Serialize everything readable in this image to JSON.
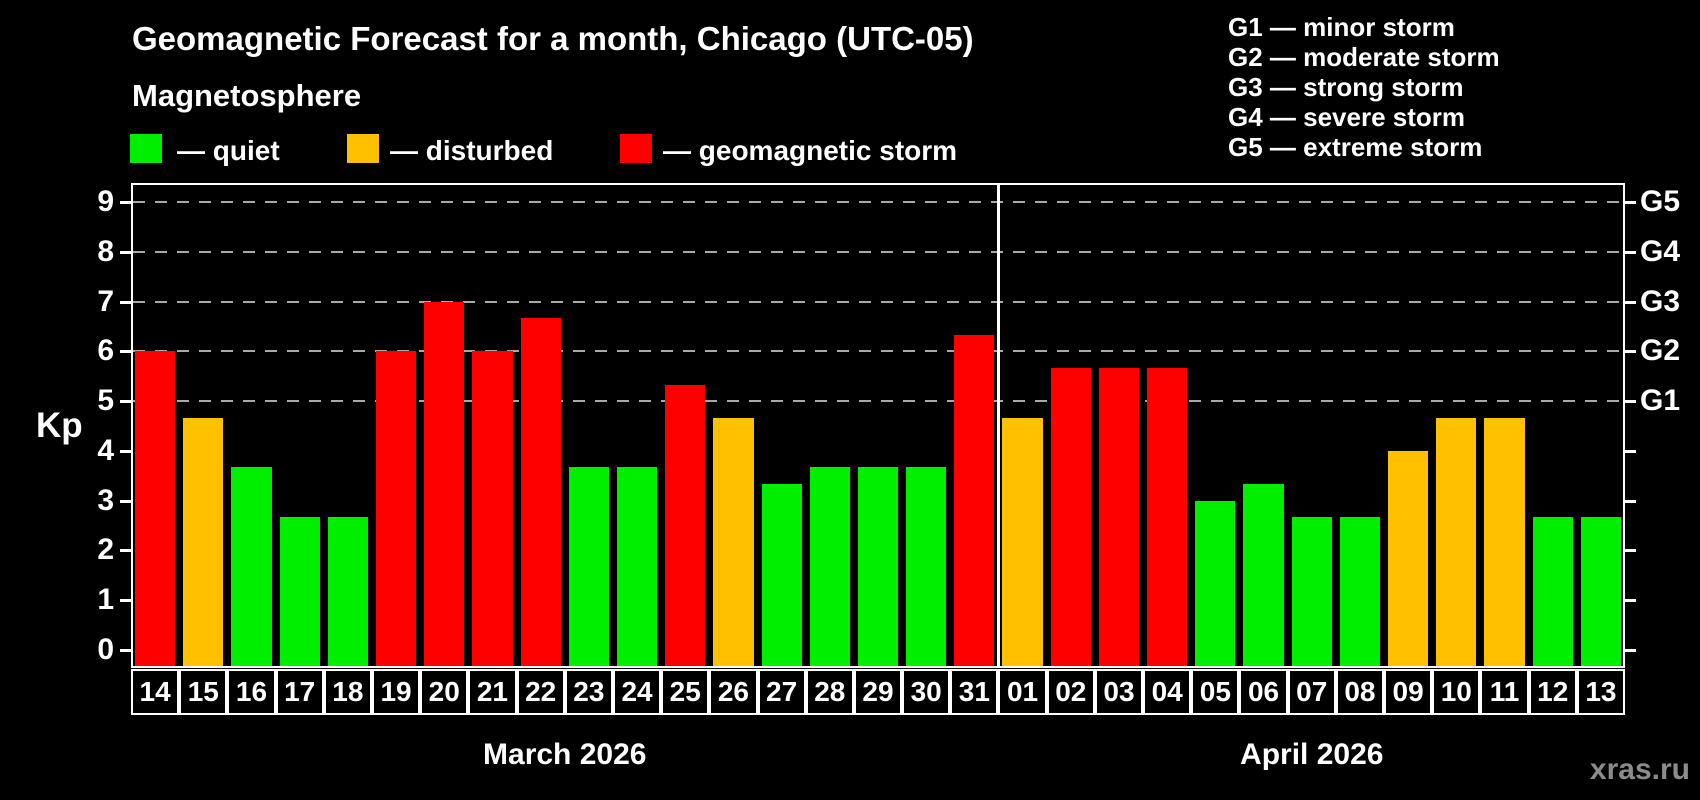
{
  "header": {
    "title": "Geomagnetic Forecast for a month, Chicago (UTC-05)",
    "subtitle": "Magnetosphere"
  },
  "legend": {
    "quiet_label": "— quiet",
    "disturbed_label": "— disturbed",
    "storm_label": "— geomagnetic storm"
  },
  "g_legend": [
    {
      "label": "G1 — minor storm"
    },
    {
      "label": "G2 — moderate storm"
    },
    {
      "label": "G3 — strong storm"
    },
    {
      "label": "G4 — severe storm"
    },
    {
      "label": "G5 — extreme storm"
    }
  ],
  "watermark": "xras.ru",
  "chart_data": {
    "type": "bar",
    "ylabel": "Kp",
    "ylim": [
      0,
      9
    ],
    "y_ticks": [
      0,
      1,
      2,
      3,
      4,
      5,
      6,
      7,
      8,
      9
    ],
    "gridlines_at_kp": [
      5,
      6,
      7,
      8,
      9
    ],
    "right_axis": [
      {
        "kp": 5,
        "label": "G1"
      },
      {
        "kp": 6,
        "label": "G2"
      },
      {
        "kp": 7,
        "label": "G3"
      },
      {
        "kp": 8,
        "label": "G4"
      },
      {
        "kp": 9,
        "label": "G5"
      }
    ],
    "status_colors": {
      "quiet": "#00ee00",
      "disturbed": "#ffc000",
      "storm": "#ff0000"
    },
    "grid_color": "#a8a8a8",
    "months": [
      {
        "label": "March 2026",
        "days": [
          {
            "date": "14",
            "kp": 6.0,
            "status": "storm"
          },
          {
            "date": "15",
            "kp": 4.67,
            "status": "disturbed"
          },
          {
            "date": "16",
            "kp": 3.67,
            "status": "quiet"
          },
          {
            "date": "17",
            "kp": 2.67,
            "status": "quiet"
          },
          {
            "date": "18",
            "kp": 2.67,
            "status": "quiet"
          },
          {
            "date": "19",
            "kp": 6.0,
            "status": "storm"
          },
          {
            "date": "20",
            "kp": 7.0,
            "status": "storm"
          },
          {
            "date": "21",
            "kp": 6.0,
            "status": "storm"
          },
          {
            "date": "22",
            "kp": 6.67,
            "status": "storm"
          },
          {
            "date": "23",
            "kp": 3.67,
            "status": "quiet"
          },
          {
            "date": "24",
            "kp": 3.67,
            "status": "quiet"
          },
          {
            "date": "25",
            "kp": 5.33,
            "status": "storm"
          },
          {
            "date": "26",
            "kp": 4.67,
            "status": "disturbed"
          },
          {
            "date": "27",
            "kp": 3.33,
            "status": "quiet"
          },
          {
            "date": "28",
            "kp": 3.67,
            "status": "quiet"
          },
          {
            "date": "29",
            "kp": 3.67,
            "status": "quiet"
          },
          {
            "date": "30",
            "kp": 3.67,
            "status": "quiet"
          },
          {
            "date": "31",
            "kp": 6.33,
            "status": "storm"
          }
        ]
      },
      {
        "label": "April 2026",
        "days": [
          {
            "date": "01",
            "kp": 4.67,
            "status": "disturbed"
          },
          {
            "date": "02",
            "kp": 5.67,
            "status": "storm"
          },
          {
            "date": "03",
            "kp": 5.67,
            "status": "storm"
          },
          {
            "date": "04",
            "kp": 5.67,
            "status": "storm"
          },
          {
            "date": "05",
            "kp": 3.0,
            "status": "quiet"
          },
          {
            "date": "06",
            "kp": 3.33,
            "status": "quiet"
          },
          {
            "date": "07",
            "kp": 2.67,
            "status": "quiet"
          },
          {
            "date": "08",
            "kp": 2.67,
            "status": "quiet"
          },
          {
            "date": "09",
            "kp": 4.0,
            "status": "disturbed"
          },
          {
            "date": "10",
            "kp": 4.67,
            "status": "disturbed"
          },
          {
            "date": "11",
            "kp": 4.67,
            "status": "disturbed"
          },
          {
            "date": "12",
            "kp": 2.67,
            "status": "quiet"
          },
          {
            "date": "13",
            "kp": 2.67,
            "status": "quiet"
          }
        ]
      }
    ]
  }
}
